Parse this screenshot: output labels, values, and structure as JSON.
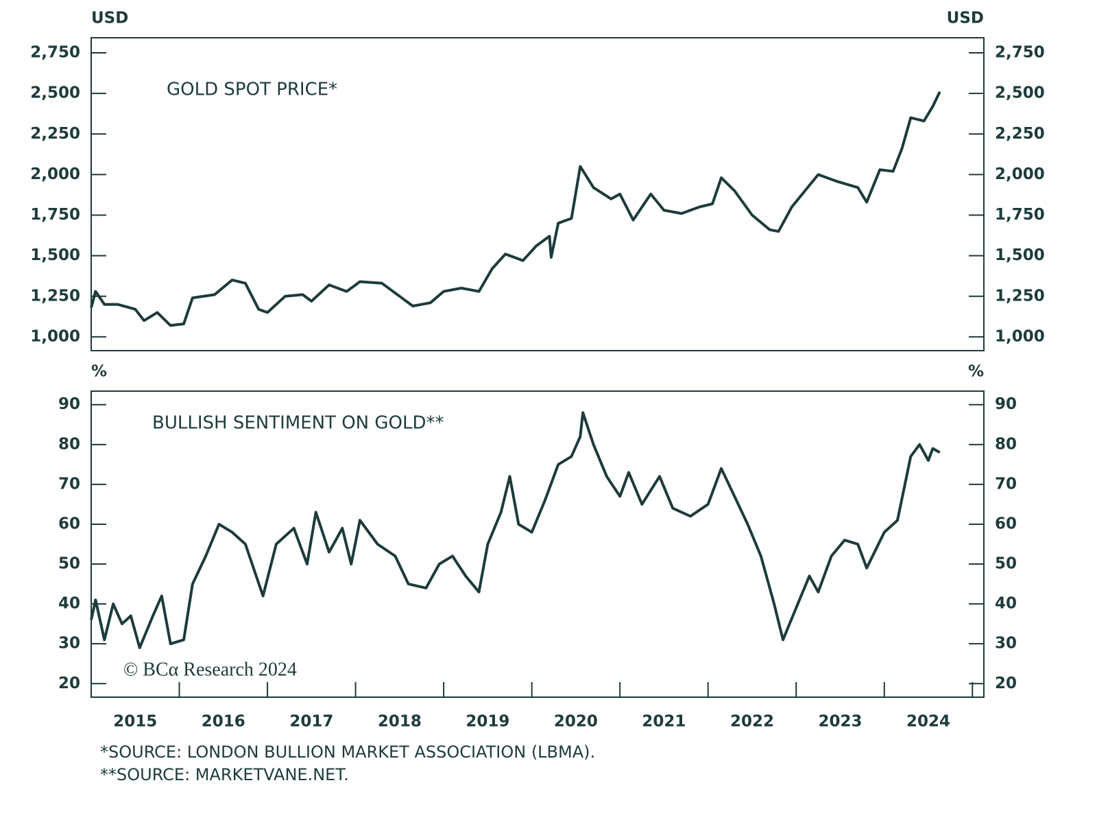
{
  "chart_data": [
    {
      "type": "line",
      "title": "GOLD SPOT PRICE*",
      "y_unit_label": "USD",
      "color": "#1e3b3b",
      "x": [
        2015.0,
        2015.05,
        2015.15,
        2015.3,
        2015.5,
        2015.6,
        2015.75,
        2015.9,
        2016.05,
        2016.15,
        2016.4,
        2016.6,
        2016.75,
        2016.9,
        2017.0,
        2017.2,
        2017.4,
        2017.5,
        2017.7,
        2017.9,
        2018.05,
        2018.3,
        2018.5,
        2018.65,
        2018.85,
        2019.0,
        2019.2,
        2019.4,
        2019.55,
        2019.7,
        2019.9,
        2020.05,
        2020.2,
        2020.22,
        2020.3,
        2020.45,
        2020.55,
        2020.7,
        2020.9,
        2021.0,
        2021.15,
        2021.35,
        2021.5,
        2021.7,
        2021.9,
        2022.05,
        2022.15,
        2022.3,
        2022.5,
        2022.7,
        2022.8,
        2022.95,
        2023.1,
        2023.25,
        2023.45,
        2023.7,
        2023.8,
        2023.95,
        2024.1,
        2024.2,
        2024.3,
        2024.45,
        2024.55,
        2024.63
      ],
      "values": [
        1180,
        1280,
        1200,
        1200,
        1170,
        1100,
        1150,
        1070,
        1080,
        1240,
        1260,
        1350,
        1330,
        1170,
        1150,
        1250,
        1260,
        1220,
        1320,
        1280,
        1340,
        1330,
        1250,
        1190,
        1210,
        1280,
        1300,
        1280,
        1420,
        1510,
        1470,
        1560,
        1620,
        1490,
        1700,
        1730,
        2050,
        1920,
        1850,
        1880,
        1720,
        1880,
        1780,
        1760,
        1800,
        1820,
        1980,
        1900,
        1750,
        1660,
        1650,
        1800,
        1900,
        2000,
        1960,
        1920,
        1830,
        2030,
        2020,
        2160,
        2350,
        2330,
        2420,
        2510
      ],
      "xlim": [
        2015.0,
        2025.13
      ],
      "ylim": [
        915,
        2843
      ],
      "yticks": [
        {
          "value": 1000,
          "label": "1,000"
        },
        {
          "value": 1250,
          "label": "1,250"
        },
        {
          "value": 1500,
          "label": "1,500"
        },
        {
          "value": 1750,
          "label": "1,750"
        },
        {
          "value": 2000,
          "label": "2,000"
        },
        {
          "value": 2250,
          "label": "2,250"
        },
        {
          "value": 2500,
          "label": "2,500"
        },
        {
          "value": 2750,
          "label": "2,750"
        }
      ]
    },
    {
      "type": "line",
      "title": "BULLISH SENTIMENT ON GOLD**",
      "y_unit_label": "%",
      "color": "#1e3b3b",
      "credit": "© BCα Research 2024",
      "x": [
        2015.0,
        2015.05,
        2015.15,
        2015.25,
        2015.35,
        2015.45,
        2015.55,
        2015.7,
        2015.8,
        2015.9,
        2016.05,
        2016.15,
        2016.3,
        2016.45,
        2016.6,
        2016.75,
        2016.95,
        2017.1,
        2017.3,
        2017.45,
        2017.55,
        2017.7,
        2017.85,
        2017.95,
        2018.05,
        2018.25,
        2018.45,
        2018.6,
        2018.8,
        2018.95,
        2019.1,
        2019.25,
        2019.4,
        2019.5,
        2019.65,
        2019.75,
        2019.85,
        2020.0,
        2020.15,
        2020.3,
        2020.45,
        2020.55,
        2020.58,
        2020.7,
        2020.85,
        2021.0,
        2021.1,
        2021.25,
        2021.45,
        2021.6,
        2021.8,
        2022.0,
        2022.15,
        2022.3,
        2022.45,
        2022.6,
        2022.75,
        2022.85,
        2023.0,
        2023.15,
        2023.25,
        2023.4,
        2023.55,
        2023.7,
        2023.8,
        2024.0,
        2024.15,
        2024.3,
        2024.4,
        2024.5,
        2024.55,
        2024.63
      ],
      "values": [
        36,
        41,
        31,
        40,
        35,
        37,
        29,
        37,
        42,
        30,
        31,
        45,
        52,
        60,
        58,
        55,
        42,
        55,
        59,
        50,
        63,
        53,
        59,
        50,
        61,
        55,
        52,
        45,
        44,
        50,
        52,
        47,
        43,
        55,
        63,
        72,
        60,
        58,
        66,
        75,
        77,
        82,
        88,
        80,
        72,
        67,
        73,
        65,
        72,
        64,
        62,
        65,
        74,
        67,
        60,
        52,
        40,
        31,
        39,
        47,
        43,
        52,
        56,
        55,
        49,
        58,
        61,
        77,
        80,
        76,
        79,
        78
      ],
      "xlim": [
        2015.0,
        2025.13
      ],
      "ylim": [
        16.6,
        93.4
      ],
      "yticks": [
        20,
        30,
        40,
        50,
        60,
        70,
        80,
        90
      ],
      "xticks": [
        {
          "value": 2015.5,
          "label": "2015"
        },
        {
          "value": 2016.5,
          "label": "2016"
        },
        {
          "value": 2017.5,
          "label": "2017"
        },
        {
          "value": 2018.5,
          "label": "2018"
        },
        {
          "value": 2019.5,
          "label": "2019"
        },
        {
          "value": 2020.5,
          "label": "2020"
        },
        {
          "value": 2021.5,
          "label": "2021"
        },
        {
          "value": 2022.5,
          "label": "2022"
        },
        {
          "value": 2023.5,
          "label": "2023"
        },
        {
          "value": 2024.5,
          "label": "2024"
        }
      ],
      "xtick_marks": [
        2016,
        2017,
        2018,
        2019,
        2020,
        2021,
        2022,
        2023,
        2024,
        2025
      ]
    }
  ],
  "footnotes": [
    "*SOURCE: LONDON BULLION MARKET ASSOCIATION (LBMA).",
    "**SOURCE: MARKETVANE.NET."
  ]
}
